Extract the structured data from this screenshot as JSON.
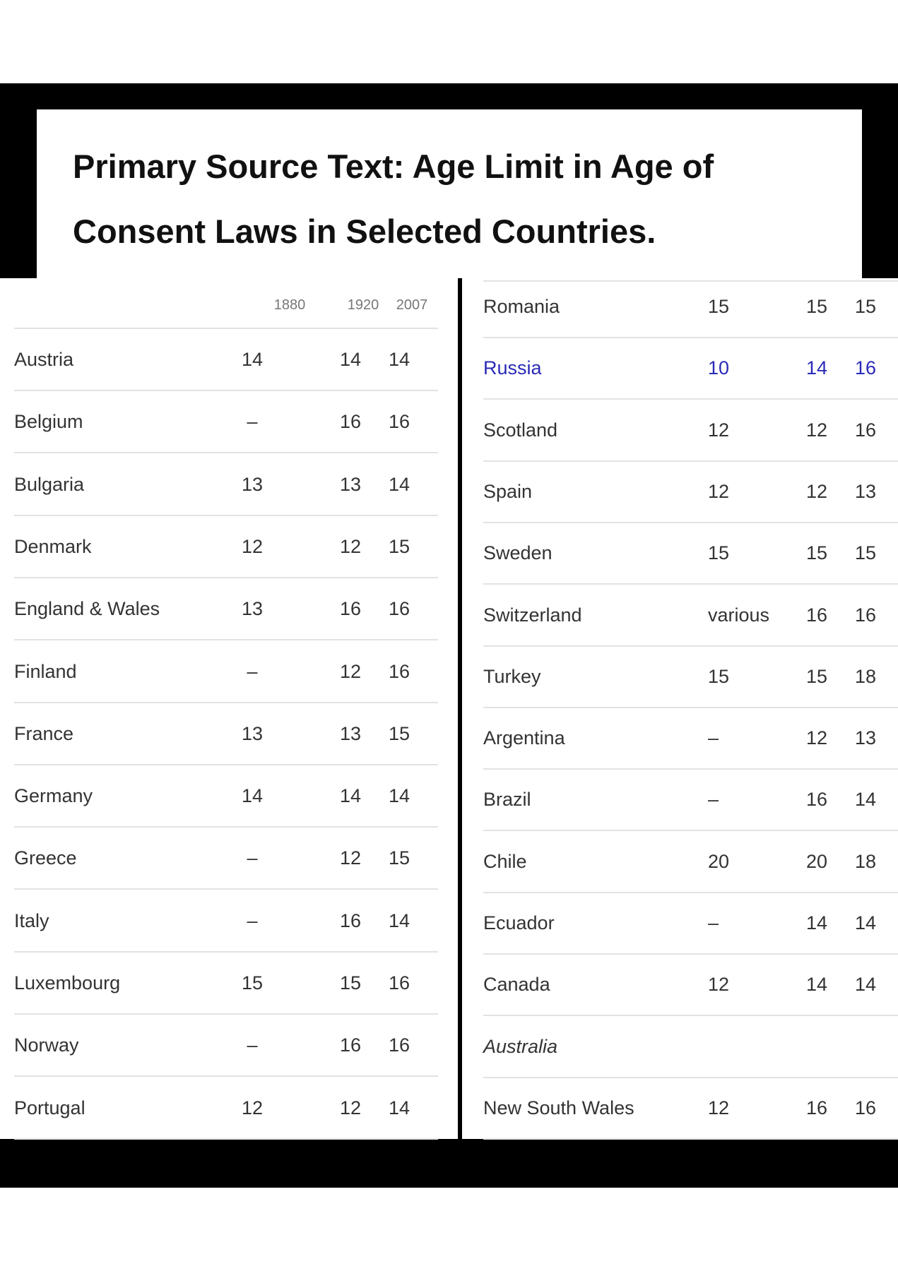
{
  "title": "Primary Source Text: Age Limit in Age of Consent Laws in Selected Countries.",
  "left_table": {
    "columns": [
      "1880",
      "1920",
      "2007"
    ],
    "rows": [
      {
        "country": "Austria",
        "values": [
          14,
          14,
          14
        ]
      },
      {
        "country": "Belgium",
        "values": [
          "–",
          16,
          16
        ]
      },
      {
        "country": "Bulgaria",
        "values": [
          13,
          13,
          14
        ]
      },
      {
        "country": "Denmark",
        "values": [
          12,
          12,
          15
        ]
      },
      {
        "country": "England & Wales",
        "values": [
          13,
          16,
          16
        ]
      },
      {
        "country": "Finland",
        "values": [
          "–",
          12,
          16
        ]
      },
      {
        "country": "France",
        "values": [
          13,
          13,
          15
        ]
      },
      {
        "country": "Germany",
        "values": [
          14,
          14,
          14
        ]
      },
      {
        "country": "Greece",
        "values": [
          "–",
          12,
          15
        ]
      },
      {
        "country": "Italy",
        "values": [
          "–",
          16,
          14
        ]
      },
      {
        "country": "Luxembourg",
        "values": [
          15,
          15,
          16
        ]
      },
      {
        "country": "Norway",
        "values": [
          "–",
          16,
          16
        ]
      },
      {
        "country": "Portugal",
        "values": [
          12,
          12,
          14
        ]
      }
    ]
  },
  "right_table": {
    "rows": [
      {
        "country": "Romania",
        "values": [
          15,
          15,
          15
        ]
      },
      {
        "country": "Russia",
        "values": [
          10,
          14,
          16
        ]
      },
      {
        "country": "Scotland",
        "values": [
          12,
          12,
          16
        ]
      },
      {
        "country": "Spain",
        "values": [
          12,
          12,
          13
        ]
      },
      {
        "country": "Sweden",
        "values": [
          15,
          15,
          15
        ]
      },
      {
        "country": "Switzerland",
        "values": [
          "various",
          16,
          16
        ]
      },
      {
        "country": "Turkey",
        "values": [
          15,
          15,
          18
        ]
      },
      {
        "country": "Argentina",
        "values": [
          "–",
          12,
          13
        ]
      },
      {
        "country": "Brazil",
        "values": [
          "–",
          16,
          14
        ]
      },
      {
        "country": "Chile",
        "values": [
          20,
          20,
          18
        ]
      },
      {
        "country": "Ecuador",
        "values": [
          "–",
          14,
          14
        ]
      },
      {
        "country": "Canada",
        "values": [
          12,
          14,
          14
        ]
      },
      {
        "country": "Australia"
      },
      {
        "country": "New South Wales",
        "values": [
          12,
          16,
          16
        ]
      }
    ]
  }
}
